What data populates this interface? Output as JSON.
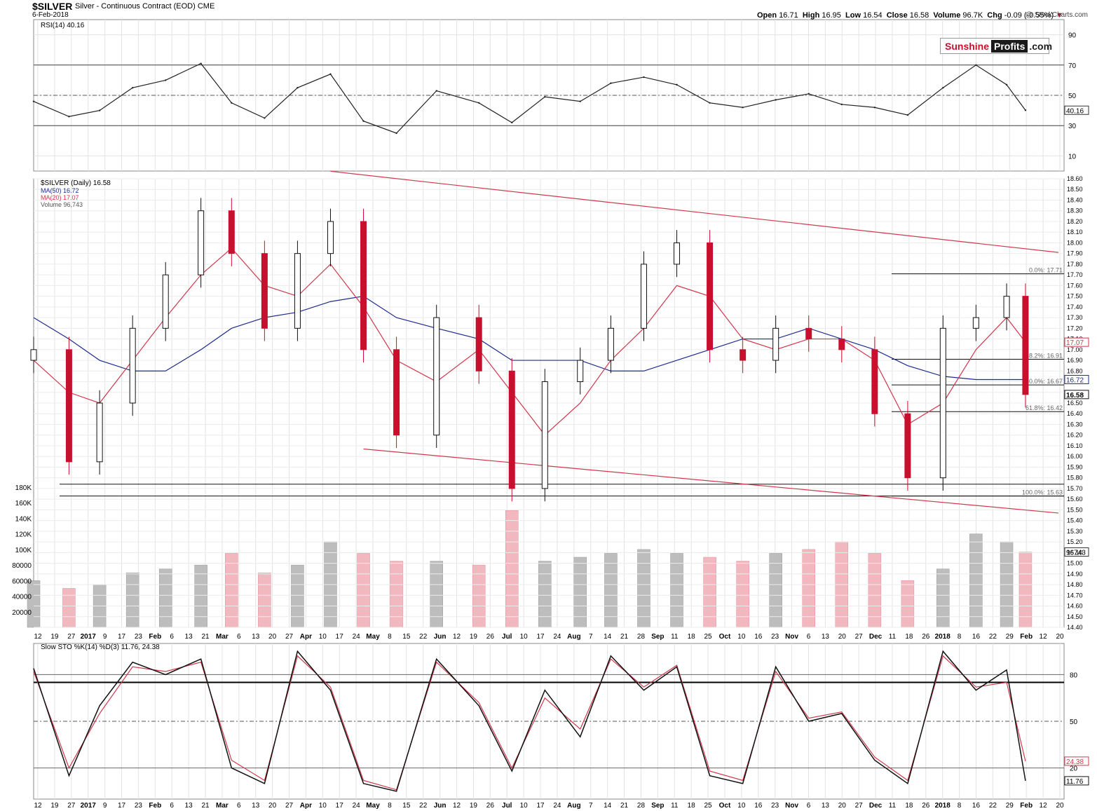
{
  "header": {
    "symbol": "$SILVER",
    "description": "Silver - Continuous Contract (EOD)",
    "exchange": "CME",
    "date": "6-Feb-2018",
    "open_label": "Open",
    "open": "16.71",
    "high_label": "High",
    "high": "16.95",
    "low_label": "Low",
    "low": "16.54",
    "close_label": "Close",
    "close": "16.58",
    "volume_label": "Volume",
    "volume": "96.7K",
    "chg_label": "Chg",
    "chg": "-0.09 (-0.55%)",
    "credit": "@ StockCharts.com"
  },
  "logo": {
    "part1": "Sunshine",
    "part2": "Profits",
    "part3": ".com"
  },
  "chart_data": [
    {
      "type": "line",
      "panel": "rsi",
      "legend": [
        "RSI(14) 40.16"
      ],
      "ylim": [
        0,
        100
      ],
      "yticks": [
        10,
        30,
        50,
        70,
        90
      ],
      "last_value_label": "40.16",
      "x": [
        "2016-12-12",
        "2016-12-27",
        "2017-01-09",
        "2017-01-23",
        "2017-02-06",
        "2017-02-21",
        "2017-03-06",
        "2017-03-20",
        "2017-04-03",
        "2017-04-17",
        "2017-05-01",
        "2017-05-15",
        "2017-06-01",
        "2017-06-19",
        "2017-07-03",
        "2017-07-17",
        "2017-08-01",
        "2017-08-14",
        "2017-08-28",
        "2017-09-11",
        "2017-09-25",
        "2017-10-09",
        "2017-10-23",
        "2017-11-06",
        "2017-11-20",
        "2017-12-04",
        "2017-12-18",
        "2018-01-02",
        "2018-01-16",
        "2018-01-29",
        "2018-02-06"
      ],
      "values": [
        46,
        36,
        40,
        55,
        60,
        71,
        45,
        35,
        55,
        64,
        33,
        25,
        53,
        45,
        32,
        49,
        46,
        58,
        62,
        57,
        45,
        42,
        47,
        51,
        44,
        42,
        37,
        55,
        70,
        57,
        40.16
      ]
    },
    {
      "type": "candlestick",
      "panel": "price",
      "legend": [
        "$SILVER (Daily) 16.58",
        "MA(50) 16.72",
        "MA(20) 17.07",
        "Volume 96,743"
      ],
      "ylim": [
        14.4,
        18.6
      ],
      "yticks": [
        14.4,
        14.5,
        14.6,
        14.7,
        14.8,
        14.9,
        15.0,
        15.1,
        15.2,
        15.3,
        15.4,
        15.5,
        15.6,
        15.7,
        15.8,
        15.9,
        16.0,
        16.1,
        16.2,
        16.3,
        16.4,
        16.5,
        16.6,
        16.7,
        16.8,
        16.9,
        17.0,
        17.1,
        17.2,
        17.3,
        17.4,
        17.5,
        17.6,
        17.7,
        17.8,
        17.9,
        18.0,
        18.1,
        18.2,
        18.3,
        18.4,
        18.5,
        18.6
      ],
      "x": [
        "2016-12-12",
        "2016-12-27",
        "2017-01-09",
        "2017-01-23",
        "2017-02-06",
        "2017-02-21",
        "2017-03-06",
        "2017-03-20",
        "2017-04-03",
        "2017-04-17",
        "2017-05-01",
        "2017-05-15",
        "2017-06-01",
        "2017-06-19",
        "2017-07-03",
        "2017-07-17",
        "2017-08-01",
        "2017-08-14",
        "2017-08-28",
        "2017-09-11",
        "2017-09-25",
        "2017-10-09",
        "2017-10-23",
        "2017-11-06",
        "2017-11-20",
        "2017-12-04",
        "2017-12-18",
        "2018-01-02",
        "2018-01-16",
        "2018-01-29",
        "2018-02-06"
      ],
      "close": [
        17.0,
        15.95,
        16.5,
        17.2,
        17.7,
        18.3,
        17.9,
        17.2,
        17.9,
        18.2,
        17.0,
        16.2,
        17.3,
        16.8,
        15.7,
        16.7,
        16.9,
        17.2,
        17.8,
        18.0,
        17.0,
        16.9,
        17.2,
        17.1,
        17.0,
        16.4,
        15.8,
        17.2,
        17.3,
        17.5,
        16.58
      ],
      "ma50": [
        17.3,
        17.1,
        16.9,
        16.8,
        16.8,
        17.0,
        17.2,
        17.3,
        17.35,
        17.45,
        17.5,
        17.3,
        17.2,
        17.1,
        16.9,
        16.9,
        16.9,
        16.8,
        16.8,
        16.9,
        17.0,
        17.1,
        17.1,
        17.2,
        17.1,
        17.0,
        16.85,
        16.75,
        16.72,
        16.72,
        16.72
      ],
      "ma20": [
        16.9,
        16.6,
        16.5,
        16.9,
        17.3,
        17.7,
        17.95,
        17.6,
        17.5,
        17.8,
        17.4,
        16.9,
        16.7,
        17.0,
        16.6,
        16.2,
        16.5,
        16.9,
        17.2,
        17.6,
        17.5,
        17.1,
        17.0,
        17.1,
        17.1,
        16.9,
        16.3,
        16.5,
        17.0,
        17.3,
        17.07
      ],
      "last_price_label": "16.58",
      "last_ma50_label": "16.72",
      "last_ma20_label": "17.07",
      "fib_levels": [
        {
          "label": "0.0%: 17.71",
          "value": 17.71
        },
        {
          "label": "38.2%: 16.91",
          "value": 16.91
        },
        {
          "label": "50.0%: 16.67",
          "value": 16.67
        },
        {
          "label": "61.8%: 16.42",
          "value": 16.42
        },
        {
          "label": "100.0%: 15.63",
          "value": 15.63
        }
      ],
      "support_levels": [
        15.63,
        15.74
      ],
      "upper_trendline": {
        "from": {
          "x": "2017-04-17",
          "y": 18.67
        },
        "to": {
          "x": "2018-02-20",
          "y": 17.91
        }
      },
      "lower_trendline": {
        "from": {
          "x": "2017-05-01",
          "y": 16.07
        },
        "to": {
          "x": "2018-02-20",
          "y": 15.47
        }
      }
    },
    {
      "type": "bar",
      "panel": "volume",
      "ylim": [
        0,
        180000
      ],
      "yticks": [
        "20000",
        "40000",
        "60000",
        "80000",
        "100K",
        "120K",
        "140K",
        "160K",
        "180K"
      ],
      "last_value_label": "96743",
      "x": [
        "2016-12-12",
        "2016-12-27",
        "2017-01-09",
        "2017-01-23",
        "2017-02-06",
        "2017-02-21",
        "2017-03-06",
        "2017-03-20",
        "2017-04-03",
        "2017-04-17",
        "2017-05-01",
        "2017-05-15",
        "2017-06-01",
        "2017-06-19",
        "2017-07-03",
        "2017-07-17",
        "2017-08-01",
        "2017-08-14",
        "2017-08-28",
        "2017-09-11",
        "2017-09-25",
        "2017-10-09",
        "2017-10-23",
        "2017-11-06",
        "2017-11-20",
        "2017-12-04",
        "2017-12-18",
        "2018-01-02",
        "2018-01-16",
        "2018-01-29",
        "2018-02-06"
      ],
      "values": [
        60000,
        50000,
        55000,
        70000,
        75000,
        80000,
        95000,
        70000,
        80000,
        110000,
        95000,
        85000,
        85000,
        80000,
        150000,
        85000,
        90000,
        95000,
        100000,
        95000,
        90000,
        85000,
        95000,
        100000,
        110000,
        95000,
        60000,
        75000,
        120000,
        110000,
        96743
      ]
    },
    {
      "type": "line",
      "panel": "stochastic",
      "legend": [
        "Slow STO %K(14) %D(3) 11.76, 24.38"
      ],
      "ylim": [
        0,
        100
      ],
      "yticks": [
        20,
        50,
        80
      ],
      "last_k_label": "11.76",
      "last_d_label": "24.38",
      "x": [
        "2016-12-12",
        "2016-12-27",
        "2017-01-09",
        "2017-01-23",
        "2017-02-06",
        "2017-02-21",
        "2017-03-06",
        "2017-03-20",
        "2017-04-03",
        "2017-04-17",
        "2017-05-01",
        "2017-05-15",
        "2017-06-01",
        "2017-06-19",
        "2017-07-03",
        "2017-07-17",
        "2017-08-01",
        "2017-08-14",
        "2017-08-28",
        "2017-09-11",
        "2017-09-25",
        "2017-10-09",
        "2017-10-23",
        "2017-11-06",
        "2017-11-20",
        "2017-12-04",
        "2017-12-18",
        "2018-01-02",
        "2018-01-16",
        "2018-01-29",
        "2018-02-06"
      ],
      "k": [
        84,
        15,
        60,
        88,
        80,
        90,
        20,
        10,
        95,
        70,
        10,
        5,
        90,
        60,
        18,
        70,
        40,
        92,
        70,
        85,
        15,
        10,
        85,
        50,
        55,
        25,
        10,
        95,
        70,
        83,
        11.76
      ],
      "d": [
        82,
        20,
        55,
        85,
        82,
        88,
        25,
        12,
        92,
        72,
        12,
        6,
        88,
        62,
        20,
        65,
        45,
        90,
        72,
        86,
        18,
        12,
        82,
        52,
        56,
        27,
        12,
        92,
        72,
        75,
        24.38
      ]
    }
  ],
  "x_axis_labels": [
    "12",
    "19",
    "27",
    "2017",
    "9",
    "17",
    "23",
    "Feb",
    "6",
    "13",
    "21",
    "Mar",
    "6",
    "13",
    "20",
    "27",
    "Apr",
    "10",
    "17",
    "24",
    "May",
    "8",
    "15",
    "22",
    "Jun",
    "12",
    "19",
    "26",
    "Jul",
    "10",
    "17",
    "24",
    "Aug",
    "7",
    "14",
    "21",
    "28",
    "Sep",
    "11",
    "18",
    "25",
    "Oct",
    "10",
    "16",
    "23",
    "Nov",
    "6",
    "13",
    "20",
    "27",
    "Dec",
    "11",
    "18",
    "26",
    "2018",
    "8",
    "16",
    "22",
    "29",
    "Feb",
    "12",
    "20"
  ]
}
